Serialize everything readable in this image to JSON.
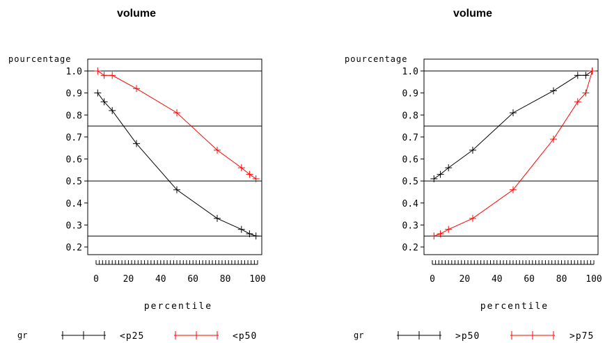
{
  "chart_data": [
    {
      "type": "line",
      "title": "volume",
      "ylabel": "pourcentage",
      "xlabel": "percentile",
      "xlim": [
        0,
        100
      ],
      "ylim": [
        0.2,
        1.0
      ],
      "xticks": [
        "0",
        "20",
        "40",
        "60",
        "80",
        "100"
      ],
      "yticks": [
        "0.2",
        "0.3",
        "0.4",
        "0.5",
        "0.6",
        "0.7",
        "0.8",
        "0.9",
        "1.0"
      ],
      "reference_lines": [
        1.0,
        0.75,
        0.5,
        0.25
      ],
      "legend": {
        "title": "gr",
        "position": "bottom"
      },
      "series": [
        {
          "name": "<p25",
          "color": "#000000",
          "x": [
            1,
            5,
            10,
            25,
            50,
            75,
            90,
            95,
            99
          ],
          "y": [
            0.9,
            0.86,
            0.82,
            0.67,
            0.46,
            0.33,
            0.28,
            0.26,
            0.25
          ]
        },
        {
          "name": "<p50",
          "color": "#ff0000",
          "x": [
            1,
            5,
            10,
            25,
            50,
            75,
            90,
            95,
            99
          ],
          "y": [
            1.0,
            0.98,
            0.98,
            0.92,
            0.81,
            0.64,
            0.56,
            0.53,
            0.51
          ]
        }
      ]
    },
    {
      "type": "line",
      "title": "volume",
      "ylabel": "pourcentage",
      "xlabel": "percentile",
      "xlim": [
        0,
        100
      ],
      "ylim": [
        0.2,
        1.0
      ],
      "xticks": [
        "0",
        "20",
        "40",
        "60",
        "80",
        "100"
      ],
      "yticks": [
        "0.2",
        "0.3",
        "0.4",
        "0.5",
        "0.6",
        "0.7",
        "0.8",
        "0.9",
        "1.0"
      ],
      "reference_lines": [
        1.0,
        0.75,
        0.5,
        0.25
      ],
      "legend": {
        "title": "gr",
        "position": "bottom"
      },
      "series": [
        {
          "name": ">p50",
          "color": "#000000",
          "x": [
            1,
            5,
            10,
            25,
            50,
            75,
            90,
            95,
            99
          ],
          "y": [
            0.51,
            0.53,
            0.56,
            0.64,
            0.81,
            0.91,
            0.98,
            0.98,
            1.0
          ]
        },
        {
          "name": ">p75",
          "color": "#ff0000",
          "x": [
            1,
            5,
            10,
            25,
            50,
            75,
            90,
            95,
            99
          ],
          "y": [
            0.25,
            0.26,
            0.28,
            0.33,
            0.46,
            0.69,
            0.86,
            0.9,
            1.0
          ]
        }
      ]
    }
  ]
}
